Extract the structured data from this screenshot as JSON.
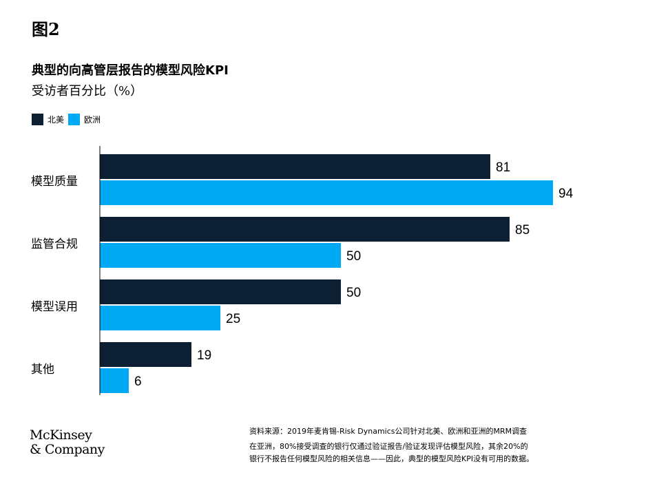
{
  "figure_label": "图2",
  "colors": {
    "north_america": "#0c1f33",
    "europe": "#00a9f4",
    "axis": "#000000"
  },
  "chart_data": {
    "type": "bar",
    "orientation": "horizontal",
    "title": "典型的向高管层报告的模型风险KPI",
    "subtitle": "受访者百分比（%）",
    "categories": [
      "模型质量",
      "监管合规",
      "模型误用",
      "其他"
    ],
    "series": [
      {
        "name": "北美",
        "values": [
          81,
          85,
          50,
          19
        ]
      },
      {
        "name": "欧洲",
        "values": [
          94,
          50,
          25,
          6
        ]
      }
    ],
    "xlim": [
      0,
      100
    ],
    "grid": false,
    "legend": "top-left",
    "data_labels": true
  },
  "logo": {
    "line1": "McKinsey",
    "line2": "& Company"
  },
  "source": {
    "line1": "资料来源：2019年麦肯锡-Risk Dynamics公司针对北美、欧洲和亚洲的MRM调查",
    "line2": "在亚洲，80%接受调查的银行仅通过验证报告/验证发现评估模型风险，其余20%的",
    "line3": "银行不报告任何模型风险的相关信息——因此，典型的模型风险KPI没有可用的数据。"
  }
}
